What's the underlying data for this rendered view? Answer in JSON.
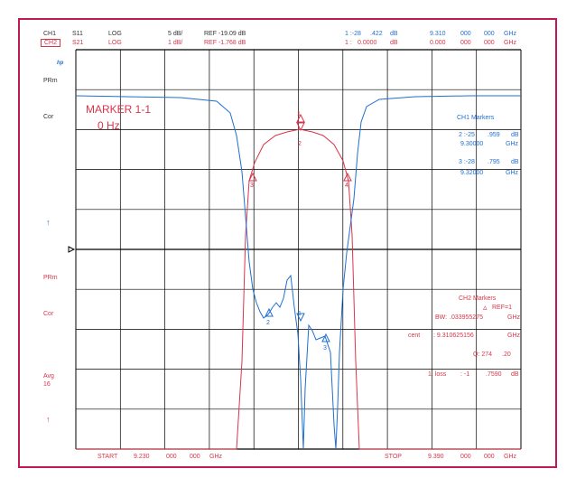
{
  "header": {
    "ch1": {
      "channel": "CH1",
      "param": "S11",
      "format": "LOG",
      "scale": "5 dB/",
      "ref": "REF -19.09 dB",
      "marker_label": "1 :-28",
      "marker_value": ".422",
      "marker_unit": "dB",
      "freq1": "9.310",
      "freq2": "000",
      "freq3": "000",
      "freq_unit": "GHz"
    },
    "ch2": {
      "channel": "CH2",
      "param": "S21",
      "format": "LOG",
      "scale": "1 dB/",
      "ref": "REF -1.768 dB",
      "marker_label": "1 :",
      "marker_value": "0.0000",
      "marker_unit": "dB",
      "freq1": "0.000",
      "freq2": "000",
      "freq3": "000",
      "freq_unit": "GHz"
    }
  },
  "left_labels": {
    "hp": "hp",
    "prm1": "PRm",
    "cor1": "Cor",
    "arrow1": "↑",
    "prm2": "PRm",
    "cor2": "Cor",
    "avg": "Avg",
    "avg_n": "16",
    "arrow2": "↑"
  },
  "marker_box": {
    "title": "MARKER 1-1",
    "value": "0 Hz"
  },
  "ch1_markers": {
    "title": "CH1   Markers",
    "m2_label": "2 :-25",
    "m2_value": ".959",
    "m2_unit": "dB",
    "m2_freq": "9.30000",
    "m2_freq_unit": "GHz",
    "m3_label": "3 :-28",
    "m3_value": ".795",
    "m3_unit": "dB",
    "m3_freq": "9.32000",
    "m3_freq_unit": "GHz"
  },
  "ch2_markers": {
    "title": "CH2   Markers",
    "ref": "REF=1",
    "bw_label": "BW:",
    "bw_value": ".033955275",
    "bw_unit": "GHz",
    "cent_label": "cent",
    "cent_value": ": 9.310625156",
    "cent_unit": "GHz",
    "q_label": "Q: 274",
    "q_value": ".20",
    "loss_label": "1. loss",
    "loss_value": ": -1",
    "loss_value2": ".7590",
    "loss_unit": "dB"
  },
  "footer": {
    "start_label": "START",
    "start_freq": "9.230",
    "start_f2": "000",
    "start_f3": "000",
    "start_unit": "GHz",
    "stop_label": "STOP",
    "stop_freq": "9.390",
    "stop_f2": "000",
    "stop_f3": "000",
    "stop_unit": "GHz"
  },
  "trace_markers": {
    "s21": [
      "1",
      "2",
      "3",
      "4"
    ],
    "s11": [
      "1",
      "2",
      "3"
    ]
  },
  "colors": {
    "s11": "#1f6fd1",
    "s21": "#d8354a",
    "frame": "#c2185b",
    "grid": "#000000"
  }
}
